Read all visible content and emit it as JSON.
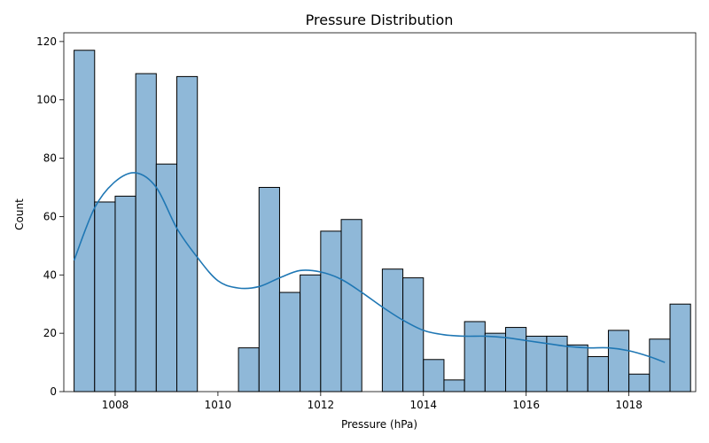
{
  "chart_data": {
    "type": "bar",
    "subtype": "histogram",
    "title": "Pressure Distribution",
    "xlabel": "Pressure (hPa)",
    "ylabel": "Count",
    "xlim": [
      1007.0,
      1019.3
    ],
    "ylim": [
      0,
      123
    ],
    "bin_start": 1007.2,
    "bin_width": 0.4,
    "counts": [
      117,
      65,
      67,
      109,
      78,
      108,
      0,
      0,
      15,
      70,
      34,
      40,
      55,
      59,
      0,
      42,
      39,
      11,
      4,
      24,
      20,
      22,
      19,
      19,
      16,
      12,
      21,
      6,
      18,
      30
    ],
    "x_ticks": [
      1008,
      1010,
      1012,
      1014,
      1016,
      1018
    ],
    "y_ticks": [
      0,
      20,
      40,
      60,
      80,
      100,
      120
    ],
    "kde": {
      "x": [
        1007.2,
        1007.6,
        1008.0,
        1008.4,
        1008.8,
        1009.2,
        1009.6,
        1010.0,
        1010.4,
        1010.8,
        1011.2,
        1011.6,
        1012.0,
        1012.4,
        1012.8,
        1013.2,
        1013.6,
        1014.0,
        1014.4,
        1014.8,
        1015.2,
        1015.6,
        1016.0,
        1016.4,
        1016.8,
        1017.2,
        1017.6,
        1018.0,
        1018.4,
        1018.7
      ],
      "y": [
        45,
        63,
        72,
        75,
        70,
        56,
        46,
        38,
        35.5,
        36,
        39,
        41.5,
        41,
        38.5,
        34,
        29,
        24.5,
        21,
        19.5,
        19,
        19,
        18.5,
        17.5,
        16.5,
        15.5,
        15,
        15,
        14,
        12,
        10
      ]
    },
    "colors": {
      "bar_fill": "#8fb8d8",
      "bar_edge": "#000000",
      "kde_line": "#1f77b4"
    },
    "grid": false,
    "legend": "none"
  }
}
